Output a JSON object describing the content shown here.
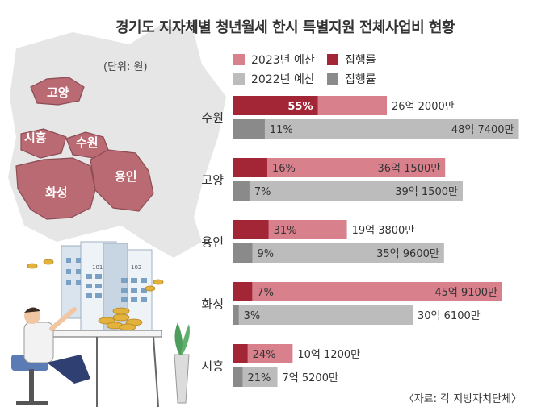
{
  "title": "경기도 지자체별 청년월세 한시 특별지원 전체사업비 현황",
  "unit_note": "(단위: 원)",
  "source": "〈자료: 각 지방자치단체〉",
  "map_labels": [
    "고양",
    "시흥",
    "수원",
    "용인",
    "화성"
  ],
  "building_labels": [
    "101",
    "102"
  ],
  "legend": {
    "budget_2023": "2023년 예산",
    "exec_2023": "집행률",
    "budget_2022": "2022년 예산",
    "exec_2022": "집행률"
  },
  "colors": {
    "budget_2023": "#d9808d",
    "exec_2023": "#a32637",
    "budget_2022": "#bcbcbc",
    "exec_2022": "#8a8a8a",
    "map_fill": "#b96a72",
    "map_bg": "#e6e6e6"
  },
  "chart_data": {
    "type": "bar",
    "orientation": "horizontal",
    "unit": "원",
    "xlim_eok": [
      0,
      52
    ],
    "categories": [
      "수원",
      "고양",
      "용인",
      "화성",
      "시흥"
    ],
    "series": [
      {
        "name": "2023년 예산",
        "values_eok": [
          26.2,
          36.15,
          19.38,
          45.91,
          10.12
        ],
        "value_labels": [
          "26억 2000만",
          "36억 1500만",
          "19억 3800만",
          "45억 9100만",
          "10억 1200만"
        ],
        "execution_rate_pct": [
          55,
          16,
          31,
          7,
          24
        ],
        "execution_labels": [
          "55%",
          "16%",
          "31%",
          "7%",
          "24%"
        ]
      },
      {
        "name": "2022년 예산",
        "values_eok": [
          48.74,
          39.15,
          35.96,
          30.61,
          7.52
        ],
        "value_labels": [
          "48억 7400만",
          "39억 1500만",
          "35억 9600만",
          "30억 6100만",
          "7억 5200만"
        ],
        "execution_rate_pct": [
          11,
          7,
          9,
          3,
          21
        ],
        "execution_labels": [
          "11%",
          "7%",
          "9%",
          "3%",
          "21%"
        ]
      }
    ]
  }
}
